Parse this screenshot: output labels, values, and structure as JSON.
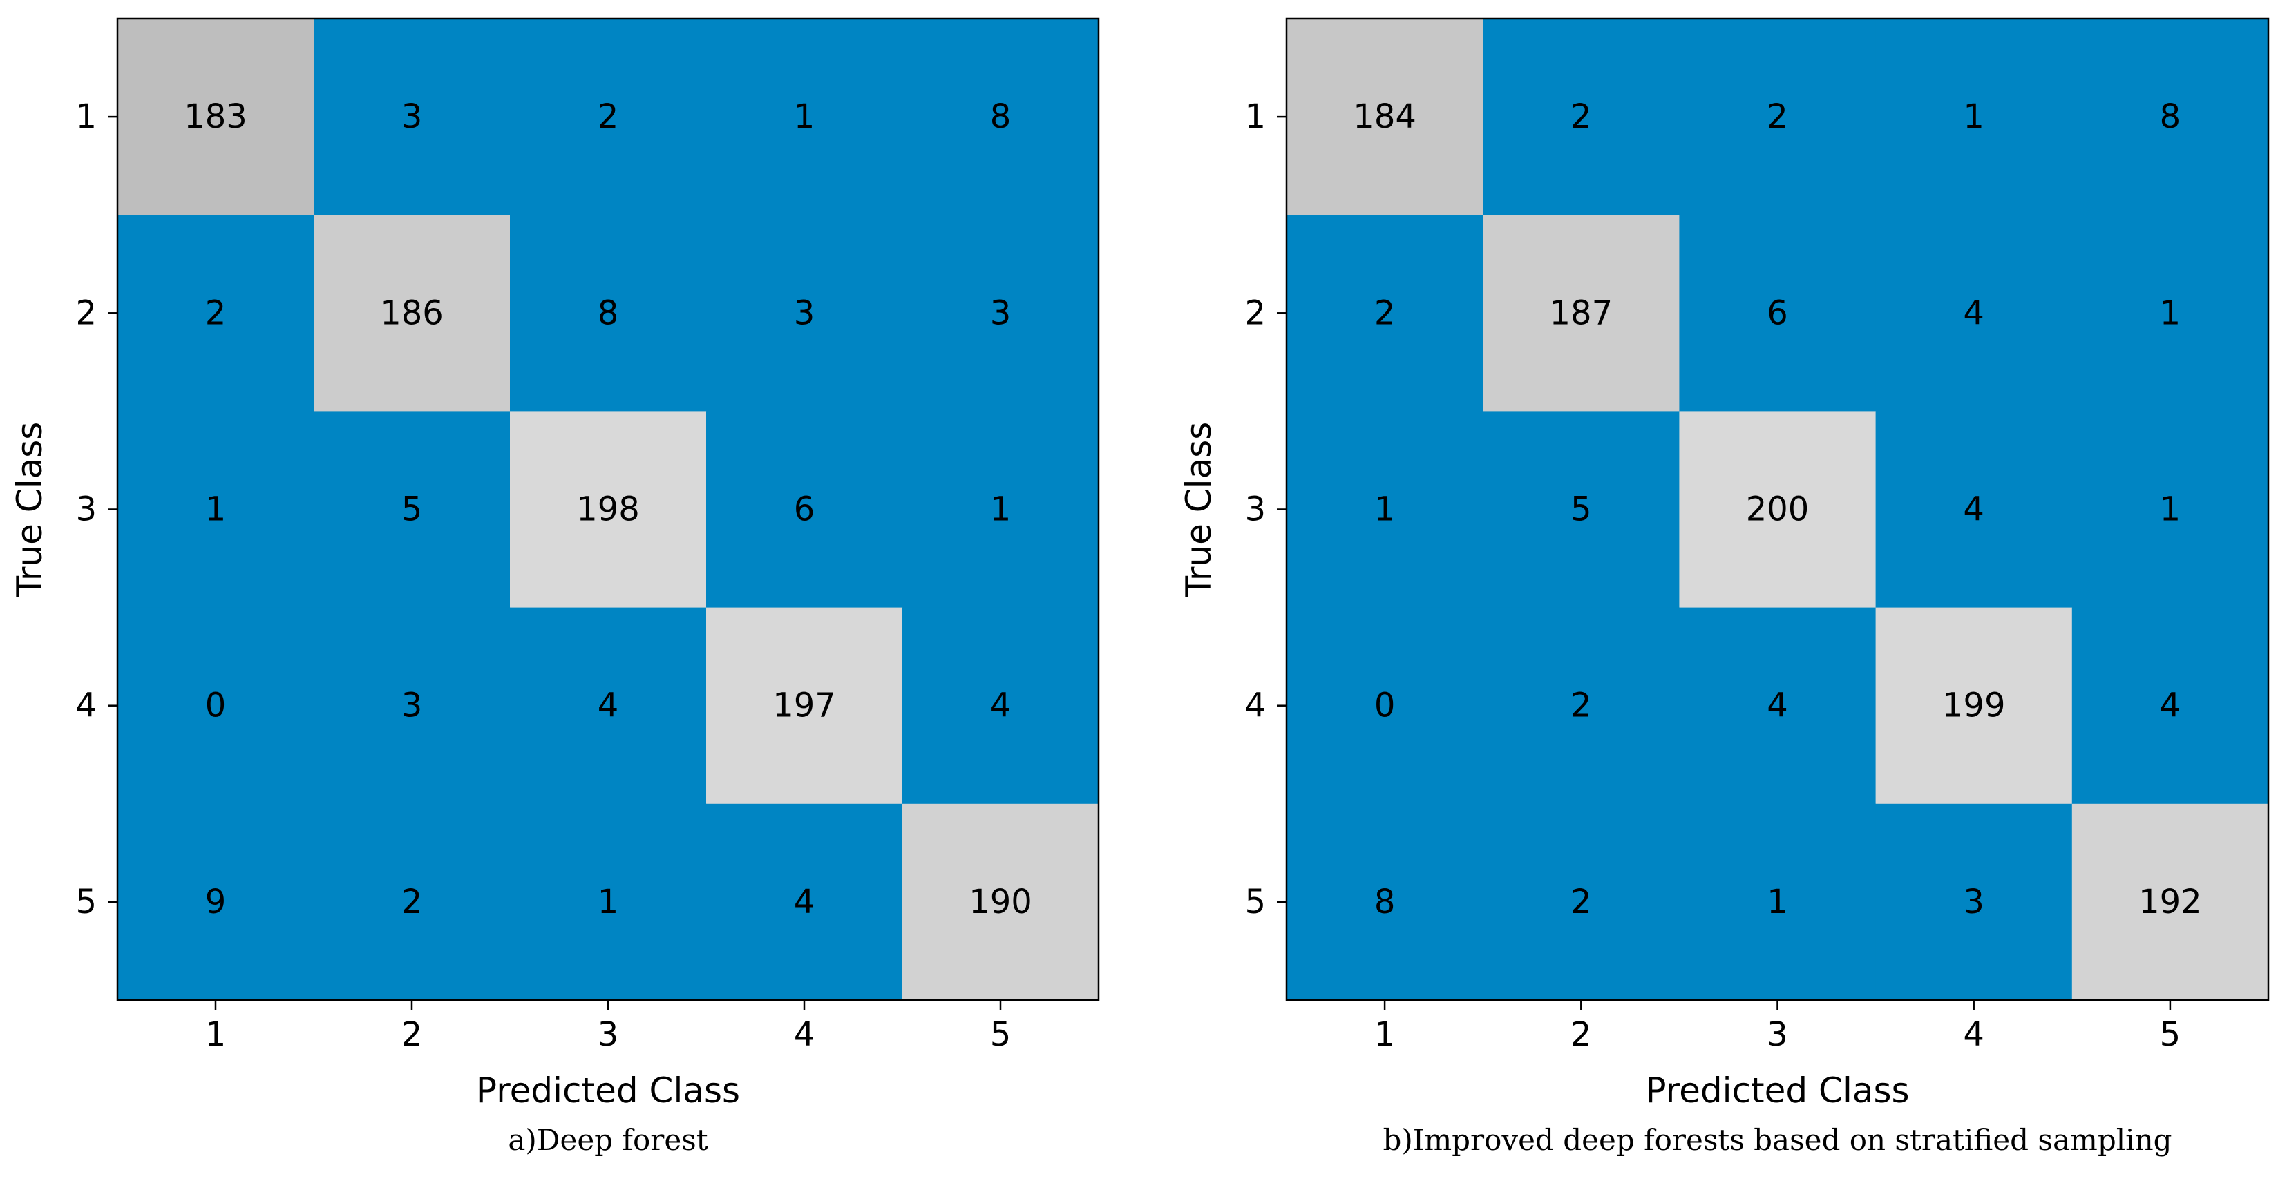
{
  "chart_data": [
    {
      "type": "heatmap",
      "caption": "a)Deep forest",
      "xlabel": "Predicted Class",
      "ylabel": "True Class",
      "x_categories": [
        "1",
        "2",
        "3",
        "4",
        "5"
      ],
      "y_categories": [
        "1",
        "2",
        "3",
        "4",
        "5"
      ],
      "matrix": [
        [
          183,
          3,
          2,
          1,
          8
        ],
        [
          2,
          186,
          8,
          3,
          3
        ],
        [
          1,
          5,
          198,
          6,
          1
        ],
        [
          0,
          3,
          4,
          197,
          4
        ],
        [
          9,
          2,
          1,
          4,
          190
        ]
      ],
      "colorscale": {
        "low": "#0085c3",
        "mid": "#bebebe",
        "high": "#d9d9d9"
      }
    },
    {
      "type": "heatmap",
      "caption": "b)Improved deep forests based on stratified sampling",
      "xlabel": "Predicted Class",
      "ylabel": "True Class",
      "x_categories": [
        "1",
        "2",
        "3",
        "4",
        "5"
      ],
      "y_categories": [
        "1",
        "2",
        "3",
        "4",
        "5"
      ],
      "matrix": [
        [
          184,
          2,
          2,
          1,
          8
        ],
        [
          2,
          187,
          6,
          4,
          1
        ],
        [
          1,
          5,
          200,
          4,
          1
        ],
        [
          0,
          2,
          4,
          199,
          4
        ],
        [
          8,
          2,
          1,
          3,
          192
        ]
      ],
      "colorscale": {
        "low": "#0085c3",
        "mid": "#bebebe",
        "high": "#d9d9d9"
      }
    }
  ]
}
